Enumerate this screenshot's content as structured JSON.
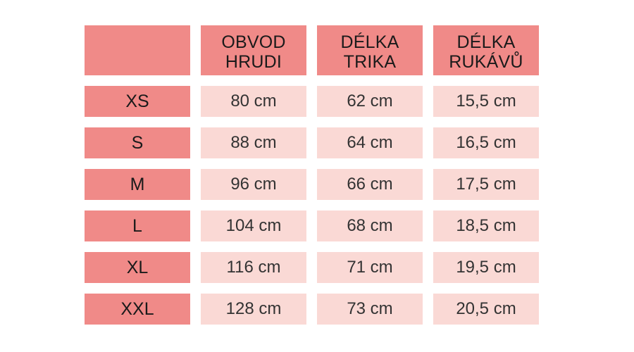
{
  "table": {
    "headers": [
      "",
      "OBVOD\nHRUDI",
      "DÉLKA\nTRIKA",
      "DÉLKA\nRUKÁVŮ"
    ],
    "rows": [
      {
        "size": "XS",
        "chest": "80 cm",
        "length": "62 cm",
        "sleeve": "15,5 cm"
      },
      {
        "size": "S",
        "chest": "88 cm",
        "length": "64 cm",
        "sleeve": "16,5 cm"
      },
      {
        "size": "M",
        "chest": "96 cm",
        "length": "66 cm",
        "sleeve": "17,5 cm"
      },
      {
        "size": "L",
        "chest": "104 cm",
        "length": "68 cm",
        "sleeve": "18,5 cm"
      },
      {
        "size": "XL",
        "chest": "116 cm",
        "length": "71 cm",
        "sleeve": "19,5 cm"
      },
      {
        "size": "XXL",
        "chest": "128 cm",
        "length": "73 cm",
        "sleeve": "20,5 cm"
      }
    ]
  },
  "colors": {
    "header_bg": "#f08a88",
    "cell_bg": "#fad9d5"
  }
}
